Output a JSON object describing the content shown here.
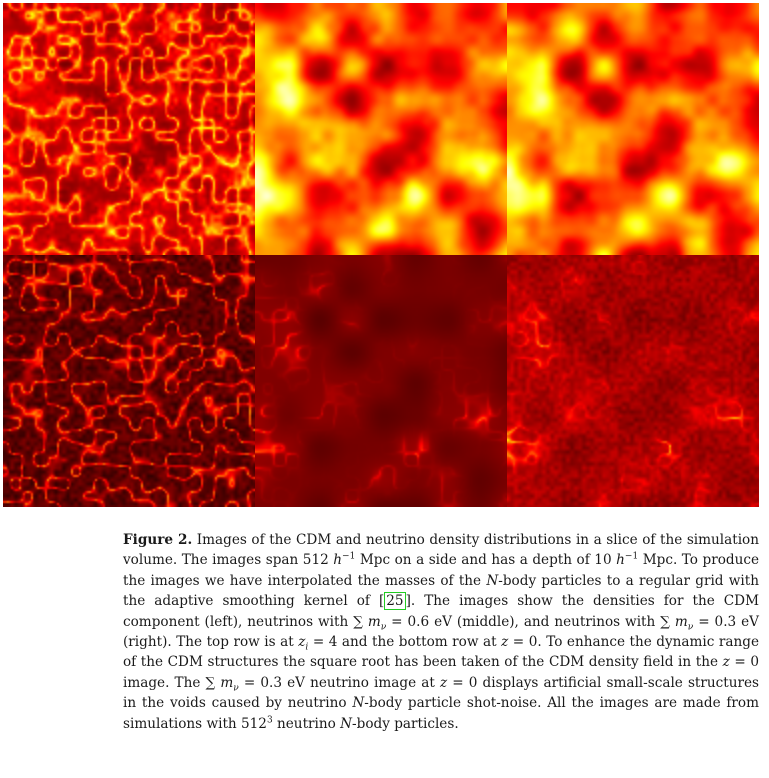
{
  "figure": {
    "panels": [
      {
        "row": "top",
        "column": "left",
        "colormap": "hot",
        "style": "filaments"
      },
      {
        "row": "top",
        "column": "middle",
        "colormap": "hot",
        "style": "smooth-bright"
      },
      {
        "row": "top",
        "column": "right",
        "colormap": "hot",
        "style": "smooth-bright"
      },
      {
        "row": "bottom",
        "column": "left",
        "colormap": "hot",
        "style": "filaments-dark"
      },
      {
        "row": "bottom",
        "column": "middle",
        "colormap": "hot",
        "style": "dark-sparse"
      },
      {
        "row": "bottom",
        "column": "right",
        "colormap": "hot",
        "style": "dark-noisy"
      }
    ]
  },
  "caption": {
    "label": "Figure 2.",
    "s1": " Images of the CDM and neutrino density distributions in a slice of the simulation volume. The images span ",
    "s2": "512",
    "s3": "h",
    "s4": "−1",
    "s5": " Mpc on a side and has a depth of ",
    "s6": "10",
    "s7": "h",
    "s8": "−1",
    "s9": " Mpc. To produce the images we have interpolated the masses of the ",
    "s10": "N",
    "s11": "-body particles to a regular grid with the adaptive smoothing kernel of ",
    "cite": "25",
    "s12": ". The images show the densities for the CDM component (left), neutrinos with ",
    "s13": "∑",
    "s14": "m",
    "s15": "ν",
    "s16": " = 0.6 eV (middle), and neutrinos with ",
    "s17": "∑",
    "s18": "m",
    "s19": "ν",
    "s20": " = 0.3 eV (right). The top row is at ",
    "s21": "z",
    "s22": "i",
    "s23": " = 4 and the bottom row at ",
    "s24": "z",
    "s25": " = 0. To enhance the dynamic range of the CDM structures the square root has been taken of the CDM density field in the ",
    "s26": "z",
    "s27": " = 0 image. The ",
    "s28": "∑",
    "s29": "m",
    "s30": "ν",
    "s31": " = 0.3 eV neutrino image at ",
    "s32": "z",
    "s33": " = 0 displays artificial small-scale structures in the voids caused by neutrino ",
    "s34": "N",
    "s35": "-body particle shot-noise. All the images are made from simulations with ",
    "s36": "512",
    "s37": "3",
    "s38": " neutrino ",
    "s39": "N",
    "s40": "-body particles."
  }
}
